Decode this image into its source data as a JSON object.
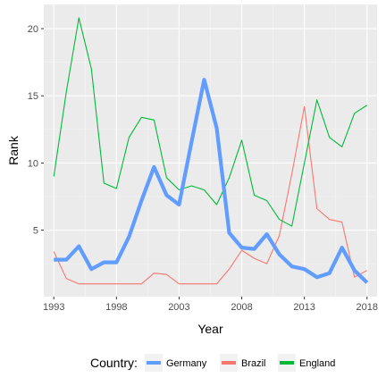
{
  "chart_data": {
    "type": "line",
    "title": "",
    "xlabel": "Year",
    "ylabel": "Rank",
    "xlim": [
      1992.2,
      2018.8
    ],
    "ylim": [
      0.05,
      21.8
    ],
    "x_ticks": [
      1993,
      1998,
      2003,
      2008,
      2013,
      2018
    ],
    "y_ticks": [
      5,
      10,
      15,
      20
    ],
    "x": [
      1993,
      1994,
      1995,
      1996,
      1997,
      1998,
      1999,
      2000,
      2001,
      2002,
      2003,
      2004,
      2005,
      2006,
      2007,
      2008,
      2009,
      2010,
      2011,
      2012,
      2013,
      2014,
      2015,
      2016,
      2017,
      2018
    ],
    "series": [
      {
        "name": "Brazil",
        "color": "#F8766D",
        "width": "thin",
        "values": [
          3.4,
          1.4,
          1.0,
          1.0,
          1.0,
          1.0,
          1.0,
          1.0,
          1.8,
          1.7,
          1.0,
          1.0,
          1.0,
          1.0,
          2.1,
          3.5,
          2.9,
          2.5,
          4.6,
          9.2,
          14.2,
          6.6,
          5.8,
          5.6,
          1.5,
          2.0
        ]
      },
      {
        "name": "England",
        "color": "#00BA38",
        "width": "thin",
        "values": [
          9.0,
          15.3,
          20.8,
          17.0,
          8.5,
          8.1,
          11.9,
          13.4,
          13.2,
          8.9,
          8.0,
          8.3,
          8.0,
          6.9,
          8.9,
          11.7,
          7.6,
          7.2,
          5.8,
          5.3,
          10.0,
          14.7,
          11.9,
          11.2,
          13.7,
          14.3
        ]
      },
      {
        "name": "Germany",
        "color": "#619CFF",
        "width": "thick",
        "values": [
          2.8,
          2.8,
          3.8,
          2.1,
          2.6,
          2.6,
          4.5,
          7.2,
          9.7,
          7.6,
          6.9,
          11.6,
          16.2,
          12.6,
          4.8,
          3.7,
          3.6,
          4.7,
          3.2,
          2.3,
          2.1,
          1.5,
          1.8,
          3.7,
          2.0,
          1.1
        ]
      }
    ],
    "legend": {
      "position": "bottom",
      "title": "Country:",
      "entries": [
        {
          "label": "Germany",
          "color": "#619CFF"
        },
        {
          "label": "Brazil",
          "color": "#F8766D"
        },
        {
          "label": "England",
          "color": "#00BA38"
        }
      ]
    },
    "grid": true,
    "panel_background": "#EBEBEB",
    "grid_color": "#FFFFFF"
  }
}
